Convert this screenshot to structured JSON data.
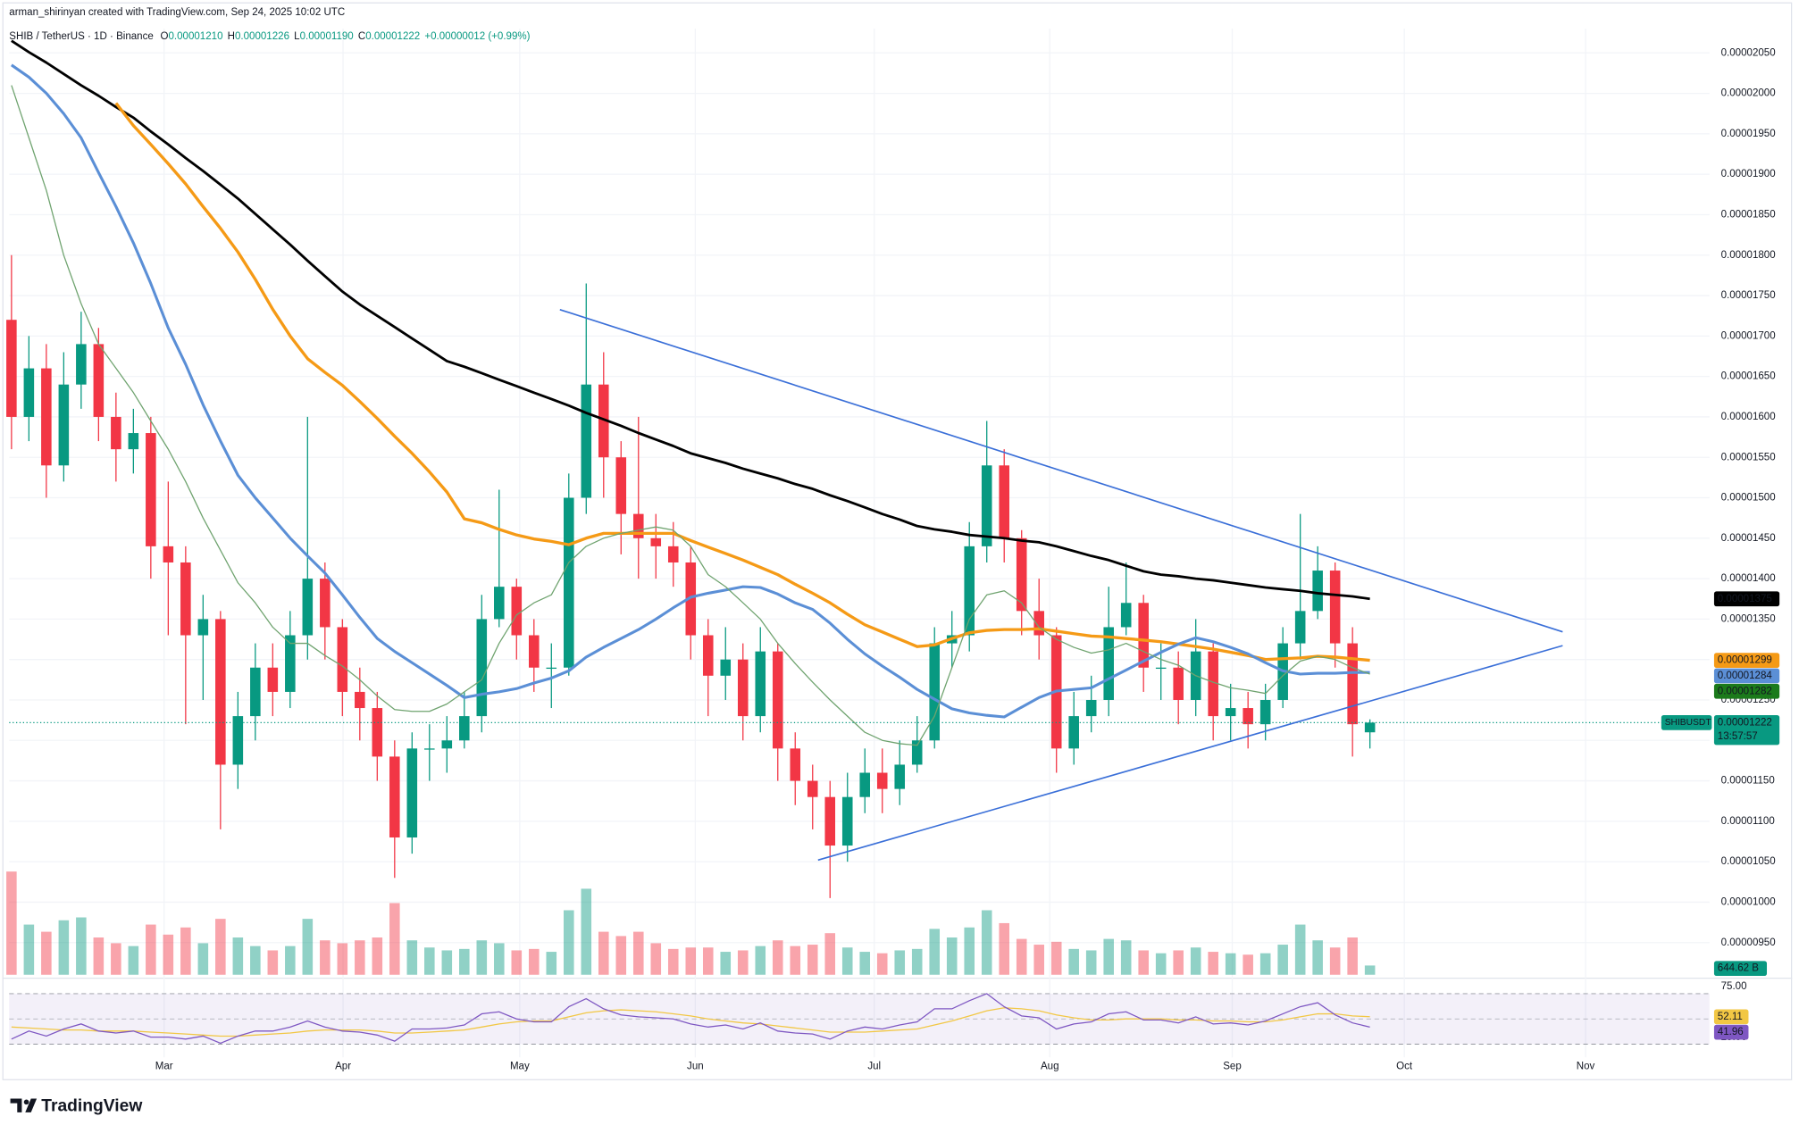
{
  "header": {
    "credit": "arman_shirinyan created with TradingView.com, Sep 24, 2025 10:02 UTC",
    "symbol": "SHIB / TetherUS · 1D · Binance",
    "ohlc": [
      [
        "O",
        "0.00001210"
      ],
      [
        "H",
        "0.00001226"
      ],
      [
        "L",
        "0.00001190"
      ],
      [
        "C",
        "0.00001222"
      ]
    ],
    "change": "+0.00000012 (+0.99%)",
    "brand": "TradingView"
  },
  "chart_data": {
    "type": "candlestick",
    "up_color": "#089981",
    "down_color": "#f23645",
    "ylim": [
      9.06e-06,
      2.08e-05
    ],
    "yticks": [
      {
        "value": 9.5e-06,
        "label": "0.00000950"
      },
      {
        "value": 1e-05,
        "label": "0.00001000"
      },
      {
        "value": 1.05e-05,
        "label": "0.00001050"
      },
      {
        "value": 1.1e-05,
        "label": "0.00001100"
      },
      {
        "value": 1.15e-05,
        "label": "0.00001150"
      },
      {
        "value": 1.2e-05,
        "label": "0.00001200"
      },
      {
        "value": 1.25e-05,
        "label": "0.00001250"
      },
      {
        "value": 1.3e-05,
        "label": "0.00001300"
      },
      {
        "value": 1.35e-05,
        "label": "0.00001350"
      },
      {
        "value": 1.4e-05,
        "label": "0.00001400"
      },
      {
        "value": 1.45e-05,
        "label": "0.00001450"
      },
      {
        "value": 1.5e-05,
        "label": "0.00001500"
      },
      {
        "value": 1.55e-05,
        "label": "0.00001550"
      },
      {
        "value": 1.6e-05,
        "label": "0.00001600"
      },
      {
        "value": 1.65e-05,
        "label": "0.00001650"
      },
      {
        "value": 1.7e-05,
        "label": "0.00001700"
      },
      {
        "value": 1.75e-05,
        "label": "0.00001750"
      },
      {
        "value": 1.8e-05,
        "label": "0.00001800"
      },
      {
        "value": 1.85e-05,
        "label": "0.00001850"
      },
      {
        "value": 1.9e-05,
        "label": "0.00001900"
      },
      {
        "value": 1.95e-05,
        "label": "0.00001950"
      },
      {
        "value": 2e-05,
        "label": "0.00002000"
      },
      {
        "value": 2.05e-05,
        "label": "0.00002050"
      }
    ],
    "x_labels": [
      "Mar",
      "Apr",
      "May",
      "Jun",
      "Jul",
      "Aug",
      "Sep",
      "Oct",
      "Nov"
    ],
    "open": [
      1.72e-05,
      1.6e-05,
      1.66e-05,
      1.54e-05,
      1.64e-05,
      1.69e-05,
      1.6e-05,
      1.56e-05,
      1.58e-05,
      1.44e-05,
      1.42e-05,
      1.33e-05,
      1.35e-05,
      1.17e-05,
      1.23e-05,
      1.29e-05,
      1.26e-05,
      1.33e-05,
      1.4e-05,
      1.34e-05,
      1.26e-05,
      1.24e-05,
      1.18e-05,
      1.08e-05,
      1.19e-05,
      1.19e-05,
      1.2e-05,
      1.23e-05,
      1.35e-05,
      1.39e-05,
      1.33e-05,
      1.29e-05,
      1.29e-05,
      1.5e-05,
      1.64e-05,
      1.55e-05,
      1.48e-05,
      1.45e-05,
      1.44e-05,
      1.42e-05,
      1.33e-05,
      1.28e-05,
      1.3e-05,
      1.23e-05,
      1.31e-05,
      1.19e-05,
      1.15e-05,
      1.13e-05,
      1.07e-05,
      1.13e-05,
      1.16e-05,
      1.14e-05,
      1.17e-05,
      1.2e-05,
      1.32e-05,
      1.33e-05,
      1.44e-05,
      1.54e-05,
      1.45e-05,
      1.36e-05,
      1.33e-05,
      1.19e-05,
      1.23e-05,
      1.25e-05,
      1.34e-05,
      1.37e-05,
      1.29e-05,
      1.29e-05,
      1.25e-05,
      1.31e-05,
      1.23e-05,
      1.24e-05,
      1.22e-05,
      1.25e-05,
      1.32e-05,
      1.36e-05,
      1.41e-05,
      1.32e-05,
      1.21e-05
    ],
    "high": [
      1.8e-05,
      1.7e-05,
      1.69e-05,
      1.68e-05,
      1.73e-05,
      1.71e-05,
      1.63e-05,
      1.61e-05,
      1.6e-05,
      1.52e-05,
      1.44e-05,
      1.38e-05,
      1.36e-05,
      1.26e-05,
      1.32e-05,
      1.32e-05,
      1.36e-05,
      1.6e-05,
      1.42e-05,
      1.35e-05,
      1.29e-05,
      1.26e-05,
      1.2e-05,
      1.21e-05,
      1.22e-05,
      1.23e-05,
      1.26e-05,
      1.38e-05,
      1.51e-05,
      1.4e-05,
      1.35e-05,
      1.32e-05,
      1.53e-05,
      1.765e-05,
      1.68e-05,
      1.57e-05,
      1.6e-05,
      1.48e-05,
      1.47e-05,
      1.44e-05,
      1.35e-05,
      1.34e-05,
      1.32e-05,
      1.34e-05,
      1.32e-05,
      1.21e-05,
      1.17e-05,
      1.15e-05,
      1.16e-05,
      1.19e-05,
      1.19e-05,
      1.2e-05,
      1.23e-05,
      1.34e-05,
      1.36e-05,
      1.47e-05,
      1.595e-05,
      1.56e-05,
      1.46e-05,
      1.4e-05,
      1.34e-05,
      1.26e-05,
      1.28e-05,
      1.39e-05,
      1.42e-05,
      1.38e-05,
      1.32e-05,
      1.31e-05,
      1.35e-05,
      1.32e-05,
      1.27e-05,
      1.26e-05,
      1.27e-05,
      1.34e-05,
      1.48e-05,
      1.44e-05,
      1.42e-05,
      1.34e-05,
      1.226e-05
    ],
    "low": [
      1.56e-05,
      1.57e-05,
      1.5e-05,
      1.52e-05,
      1.61e-05,
      1.57e-05,
      1.52e-05,
      1.53e-05,
      1.4e-05,
      1.33e-05,
      1.22e-05,
      1.25e-05,
      1.09e-05,
      1.14e-05,
      1.2e-05,
      1.23e-05,
      1.24e-05,
      1.3e-05,
      1.3e-05,
      1.23e-05,
      1.2e-05,
      1.15e-05,
      1.03e-05,
      1.06e-05,
      1.15e-05,
      1.16e-05,
      1.19e-05,
      1.21e-05,
      1.34e-05,
      1.3e-05,
      1.26e-05,
      1.24e-05,
      1.28e-05,
      1.48e-05,
      1.5e-05,
      1.43e-05,
      1.4e-05,
      1.4e-05,
      1.39e-05,
      1.3e-05,
      1.23e-05,
      1.25e-05,
      1.2e-05,
      1.21e-05,
      1.15e-05,
      1.12e-05,
      1.09e-05,
      1.005e-05,
      1.05e-05,
      1.11e-05,
      1.11e-05,
      1.12e-05,
      1.16e-05,
      1.19e-05,
      1.29e-05,
      1.31e-05,
      1.42e-05,
      1.42e-05,
      1.33e-05,
      1.3e-05,
      1.16e-05,
      1.17e-05,
      1.21e-05,
      1.23e-05,
      1.33e-05,
      1.26e-05,
      1.25e-05,
      1.22e-05,
      1.23e-05,
      1.2e-05,
      1.2e-05,
      1.19e-05,
      1.2e-05,
      1.24e-05,
      1.3e-05,
      1.35e-05,
      1.29e-05,
      1.18e-05,
      1.19e-05
    ],
    "close": [
      1.6e-05,
      1.66e-05,
      1.54e-05,
      1.64e-05,
      1.69e-05,
      1.6e-05,
      1.56e-05,
      1.58e-05,
      1.44e-05,
      1.42e-05,
      1.33e-05,
      1.35e-05,
      1.17e-05,
      1.23e-05,
      1.29e-05,
      1.26e-05,
      1.33e-05,
      1.4e-05,
      1.34e-05,
      1.26e-05,
      1.24e-05,
      1.18e-05,
      1.08e-05,
      1.19e-05,
      1.19e-05,
      1.2e-05,
      1.23e-05,
      1.35e-05,
      1.39e-05,
      1.33e-05,
      1.29e-05,
      1.29e-05,
      1.5e-05,
      1.64e-05,
      1.55e-05,
      1.48e-05,
      1.45e-05,
      1.44e-05,
      1.42e-05,
      1.33e-05,
      1.28e-05,
      1.3e-05,
      1.23e-05,
      1.31e-05,
      1.19e-05,
      1.15e-05,
      1.13e-05,
      1.07e-05,
      1.13e-05,
      1.16e-05,
      1.14e-05,
      1.17e-05,
      1.2e-05,
      1.32e-05,
      1.33e-05,
      1.44e-05,
      1.54e-05,
      1.45e-05,
      1.36e-05,
      1.33e-05,
      1.19e-05,
      1.23e-05,
      1.25e-05,
      1.34e-05,
      1.37e-05,
      1.29e-05,
      1.29e-05,
      1.25e-05,
      1.31e-05,
      1.23e-05,
      1.24e-05,
      1.22e-05,
      1.25e-05,
      1.32e-05,
      1.36e-05,
      1.41e-05,
      1.32e-05,
      1.22e-05,
      1.222e-05
    ],
    "last_price": {
      "symbol": "SHIBUSDT",
      "label": "0.00001222",
      "countdown": "13:57:57"
    },
    "series": [
      {
        "color": "#000000",
        "width": 2.2,
        "last_label": "0.00001375",
        "label_color": "#ffffff",
        "values": [
          2.065e-05,
          2.051e-05,
          2.038e-05,
          2.024e-05,
          2.01e-05,
          1.997e-05,
          1.983e-05,
          1.97e-05,
          1.953e-05,
          1.937e-05,
          1.92e-05,
          1.904e-05,
          1.887e-05,
          1.87e-05,
          1.851e-05,
          1.832e-05,
          1.813e-05,
          1.793e-05,
          1.774e-05,
          1.755e-05,
          1.739e-05,
          1.725e-05,
          1.711e-05,
          1.697e-05,
          1.683e-05,
          1.669e-05,
          1.662e-05,
          1.654e-05,
          1.646e-05,
          1.638e-05,
          1.63e-05,
          1.622e-05,
          1.614e-05,
          1.605e-05,
          1.597e-05,
          1.589e-05,
          1.58e-05,
          1.572e-05,
          1.564e-05,
          1.555e-05,
          1.549e-05,
          1.543e-05,
          1.536e-05,
          1.53e-05,
          1.524e-05,
          1.517e-05,
          1.511e-05,
          1.503e-05,
          1.496e-05,
          1.488e-05,
          1.48e-05,
          1.473e-05,
          1.465e-05,
          1.461e-05,
          1.458e-05,
          1.454e-05,
          1.452e-05,
          1.45e-05,
          1.447e-05,
          1.445e-05,
          1.44e-05,
          1.434e-05,
          1.428e-05,
          1.423e-05,
          1.416e-05,
          1.409e-05,
          1.405e-05,
          1.403e-05,
          1.4e-05,
          1.398e-05,
          1.395e-05,
          1.392e-05,
          1.389e-05,
          1.387e-05,
          1.385e-05,
          1.382e-05,
          1.38e-05,
          1.378e-05,
          1.375e-05
        ]
      },
      {
        "color": "#f59a16",
        "width": 2.6,
        "last_label": "0.00001299",
        "label_color": "#ffffff",
        "values": [
          null,
          null,
          null,
          null,
          null,
          null,
          1.988e-05,
          1.96e-05,
          1.937e-05,
          1.913e-05,
          1.888e-05,
          1.86e-05,
          1.833e-05,
          1.804e-05,
          1.77e-05,
          1.733e-05,
          1.7e-05,
          1.672e-05,
          1.655e-05,
          1.639e-05,
          1.619e-05,
          1.598e-05,
          1.576e-05,
          1.555e-05,
          1.532e-05,
          1.507e-05,
          1.474e-05,
          1.469e-05,
          1.461e-05,
          1.454e-05,
          1.449e-05,
          1.446e-05,
          1.442e-05,
          1.45e-05,
          1.456e-05,
          1.456e-05,
          1.456e-05,
          1.456e-05,
          1.456e-05,
          1.447e-05,
          1.439e-05,
          1.431e-05,
          1.423e-05,
          1.414e-05,
          1.405e-05,
          1.393e-05,
          1.382e-05,
          1.37e-05,
          1.356e-05,
          1.343e-05,
          1.334e-05,
          1.325e-05,
          1.316e-05,
          1.318e-05,
          1.326e-05,
          1.333e-05,
          1.336e-05,
          1.337e-05,
          1.337e-05,
          1.338e-05,
          1.335e-05,
          1.332e-05,
          1.329e-05,
          1.328e-05,
          1.326e-05,
          1.324e-05,
          1.322e-05,
          1.319e-05,
          1.316e-05,
          1.313e-05,
          1.309e-05,
          1.305e-05,
          1.3e-05,
          1.301e-05,
          1.302e-05,
          1.304e-05,
          1.303e-05,
          1.301e-05,
          1.299e-05
        ]
      },
      {
        "color": "#5b8fd6",
        "width": 2.4,
        "last_label": "0.00001284",
        "label_color": "#ffffff",
        "values": [
          2.035e-05,
          2.02e-05,
          2e-05,
          1.975e-05,
          1.945e-05,
          1.902e-05,
          1.86e-05,
          1.815e-05,
          1.765e-05,
          1.71e-05,
          1.665e-05,
          1.615e-05,
          1.57e-05,
          1.528e-05,
          1.5e-05,
          1.475e-05,
          1.45e-05,
          1.428e-05,
          1.407e-05,
          1.38e-05,
          1.352e-05,
          1.326e-05,
          1.31e-05,
          1.296e-05,
          1.282e-05,
          1.268e-05,
          1.253e-05,
          1.257e-05,
          1.26e-05,
          1.264e-05,
          1.271e-05,
          1.277e-05,
          1.286e-05,
          1.303e-05,
          1.315e-05,
          1.326e-05,
          1.337e-05,
          1.35e-05,
          1.364e-05,
          1.377e-05,
          1.382e-05,
          1.386e-05,
          1.39e-05,
          1.389e-05,
          1.381e-05,
          1.37e-05,
          1.362e-05,
          1.345e-05,
          1.325e-05,
          1.307e-05,
          1.292e-05,
          1.278e-05,
          1.263e-05,
          1.251e-05,
          1.239e-05,
          1.234e-05,
          1.231e-05,
          1.229e-05,
          1.241e-05,
          1.253e-05,
          1.261e-05,
          1.263e-05,
          1.265e-05,
          1.276e-05,
          1.287e-05,
          1.298e-05,
          1.309e-05,
          1.319e-05,
          1.327e-05,
          1.322e-05,
          1.315e-05,
          1.307e-05,
          1.296e-05,
          1.286e-05,
          1.282e-05,
          1.283e-05,
          1.283e-05,
          1.284e-05,
          1.284e-05
        ]
      },
      {
        "color": "#6fa36f",
        "width": 1,
        "last_label": "0.00001282",
        "label_color": "#ffffff",
        "tag_color": "#1b7a1b",
        "values": [
          2.01e-05,
          1.945e-05,
          1.88e-05,
          1.8e-05,
          1.74e-05,
          1.69e-05,
          1.66e-05,
          1.63e-05,
          1.595e-05,
          1.56e-05,
          1.52e-05,
          1.475e-05,
          1.435e-05,
          1.395e-05,
          1.37e-05,
          1.34e-05,
          1.32e-05,
          1.32e-05,
          1.305e-05,
          1.292e-05,
          1.275e-05,
          1.255e-05,
          1.238e-05,
          1.236e-05,
          1.236e-05,
          1.245e-05,
          1.26e-05,
          1.275e-05,
          1.32e-05,
          1.355e-05,
          1.37e-05,
          1.38e-05,
          1.42e-05,
          1.44e-05,
          1.45e-05,
          1.456e-05,
          1.46e-05,
          1.464e-05,
          1.46e-05,
          1.44e-05,
          1.405e-05,
          1.39e-05,
          1.37e-05,
          1.35e-05,
          1.32e-05,
          1.295e-05,
          1.272e-05,
          1.25e-05,
          1.23e-05,
          1.21e-05,
          1.2e-05,
          1.196e-05,
          1.194e-05,
          1.23e-05,
          1.29e-05,
          1.35e-05,
          1.38e-05,
          1.385e-05,
          1.37e-05,
          1.34e-05,
          1.325e-05,
          1.315e-05,
          1.308e-05,
          1.312e-05,
          1.32e-05,
          1.31e-05,
          1.3e-05,
          1.293e-05,
          1.28e-05,
          1.272e-05,
          1.265e-05,
          1.262e-05,
          1.258e-05,
          1.28e-05,
          1.298e-05,
          1.304e-05,
          1.3e-05,
          1.29e-05,
          1.282e-05
        ]
      }
    ],
    "volume": {
      "ylim": [
        0,
        8000
      ],
      "last_label": "644.62 B",
      "values": [
        7200,
        3500,
        3000,
        3800,
        4000,
        2600,
        2200,
        2000,
        3500,
        2800,
        3300,
        2200,
        3900,
        2600,
        2000,
        1700,
        2000,
        3900,
        2400,
        2200,
        2400,
        2600,
        5000,
        2400,
        1900,
        1700,
        1800,
        2400,
        2200,
        1700,
        1800,
        1600,
        4500,
        6000,
        3000,
        2700,
        3000,
        2200,
        1800,
        1900,
        1900,
        1600,
        1700,
        2000,
        2400,
        2000,
        2100,
        2900,
        1900,
        1600,
        1500,
        1700,
        1800,
        3200,
        2600,
        3300,
        4500,
        3600,
        2500,
        2100,
        2300,
        1800,
        1700,
        2500,
        2400,
        1700,
        1500,
        1700,
        1900,
        1600,
        1500,
        1400,
        1500,
        2100,
        3500,
        2400,
        1900,
        2600,
        644.62
      ]
    },
    "rsi": {
      "ylim": [
        12,
        88
      ],
      "yticks": [
        {
          "value": 75,
          "label": "75.00"
        },
        {
          "value": 25,
          "label": "25.00"
        }
      ],
      "color": "#7e57c2",
      "ma_color": "#f2c744",
      "values": [
        30,
        38,
        33,
        40,
        45,
        38,
        36,
        38,
        32,
        32,
        30,
        33,
        26,
        33,
        38,
        38,
        42,
        48,
        42,
        38,
        37,
        34,
        28,
        40,
        40,
        41,
        44,
        55,
        57,
        50,
        47,
        47,
        62,
        70,
        60,
        54,
        52,
        51,
        50,
        45,
        42,
        44,
        40,
        46,
        38,
        36,
        35,
        30,
        38,
        42,
        40,
        44,
        47,
        60,
        60,
        68,
        75,
        62,
        53,
        51,
        40,
        45,
        47,
        55,
        57,
        49,
        49,
        46,
        52,
        45,
        46,
        44,
        48,
        55,
        62,
        66,
        54,
        46,
        41.96
      ],
      "ma": [
        42,
        41,
        40,
        39,
        39,
        38,
        38,
        38,
        37,
        36,
        35,
        34,
        33,
        33,
        34,
        35,
        36,
        38,
        39,
        39,
        39,
        38,
        36,
        36,
        37,
        38,
        39,
        42,
        45,
        47,
        48,
        48,
        52,
        56,
        58,
        59,
        58,
        57,
        55,
        53,
        50,
        48,
        46,
        45,
        43,
        41,
        39,
        37,
        37,
        37,
        38,
        39,
        40,
        44,
        48,
        53,
        58,
        61,
        60,
        58,
        54,
        51,
        49,
        49,
        50,
        50,
        50,
        49,
        49,
        48,
        48,
        47,
        47,
        49,
        52,
        55,
        55,
        53,
        52.11
      ]
    }
  }
}
